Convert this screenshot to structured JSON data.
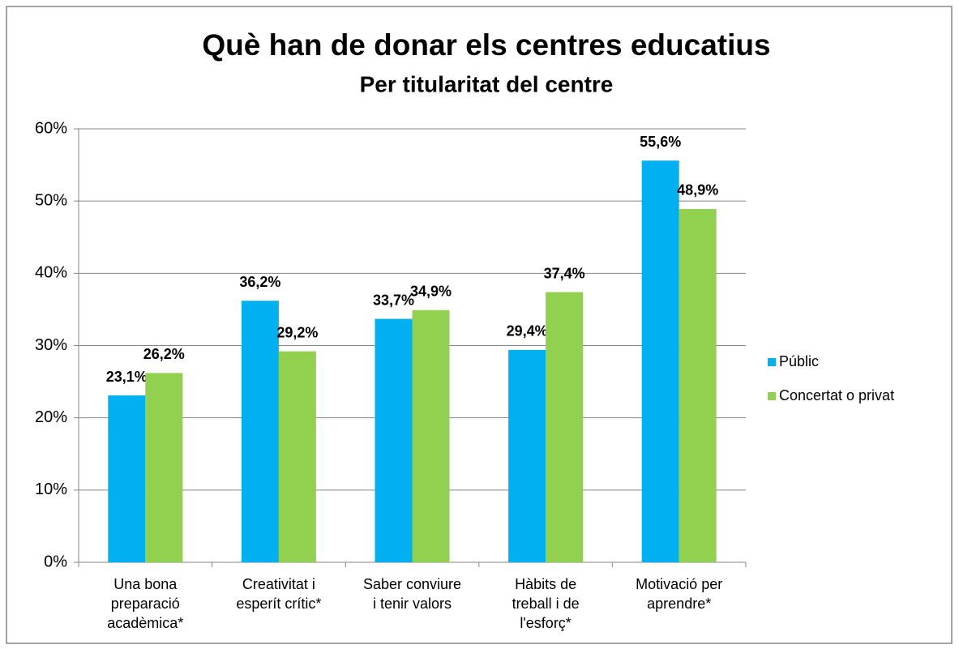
{
  "chart_data": {
    "type": "bar",
    "title": "Què han de donar els centres educatius",
    "subtitle": "Per titularitat del centre",
    "categories": [
      [
        "Una bona",
        "preparació",
        "acadèmica*"
      ],
      [
        "Creativitat i",
        "esperít crític*"
      ],
      [
        "Saber conviure",
        "i tenir valors"
      ],
      [
        "Hàbits de",
        "treball i de",
        "l'esforç*"
      ],
      [
        "Motivació per",
        "aprendre*"
      ]
    ],
    "series": [
      {
        "name": "Públic",
        "color": "#00b0f0",
        "values": [
          23.1,
          36.2,
          33.7,
          29.4,
          55.6
        ],
        "value_labels": [
          "23,1%",
          "36,2%",
          "33,7%",
          "29,4%",
          "55,6%"
        ]
      },
      {
        "name": "Concertat o privat",
        "color": "#92d050",
        "values": [
          26.2,
          29.2,
          34.9,
          37.4,
          48.9
        ],
        "value_labels": [
          "26,2%",
          "29,2%",
          "34,9%",
          "37,4%",
          "48,9%"
        ]
      }
    ],
    "ylim": [
      0,
      60
    ],
    "yticks": [
      {
        "value": 0,
        "label": "0%"
      },
      {
        "value": 10,
        "label": "10%"
      },
      {
        "value": 20,
        "label": "20%"
      },
      {
        "value": 30,
        "label": "30%"
      },
      {
        "value": 40,
        "label": "40%"
      },
      {
        "value": 50,
        "label": "50%"
      },
      {
        "value": 60,
        "label": "60%"
      }
    ],
    "grid": true,
    "legend": "right"
  }
}
